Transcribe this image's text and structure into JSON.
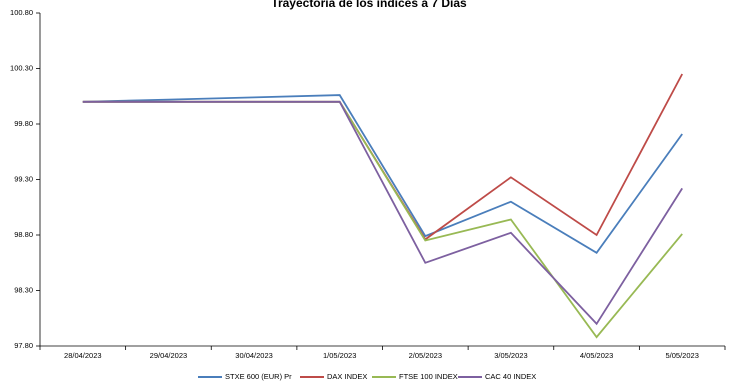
{
  "chart_data": {
    "type": "line",
    "title": "Trayectoria de los índices a 7 Días",
    "xlabel": "",
    "ylabel": "",
    "categories": [
      "28/04/2023",
      "29/04/2023",
      "30/04/2023",
      "1/05/2023",
      "2/05/2023",
      "3/05/2023",
      "4/05/2023",
      "5/05/2023"
    ],
    "ylim": [
      97.8,
      100.8
    ],
    "yticks": [
      97.8,
      98.3,
      98.8,
      99.3,
      99.8,
      100.3,
      100.8
    ],
    "ytick_labels": [
      "97.80",
      "98.30",
      "98.80",
      "99.30",
      "99.80",
      "100.30",
      "100.80"
    ],
    "grid": false,
    "legend_position": "bottom",
    "series": [
      {
        "name": "STXE 600 (EUR) Pr",
        "color": "#4a7ebb",
        "values": [
          100.0,
          100.02,
          100.04,
          100.06,
          98.79,
          99.1,
          98.64,
          99.71
        ]
      },
      {
        "name": "DAX INDEX",
        "color": "#be4b48",
        "values": [
          100.0,
          100.0,
          100.0,
          100.0,
          98.76,
          99.32,
          98.8,
          100.25
        ]
      },
      {
        "name": "FTSE 100 INDEX",
        "color": "#98b954",
        "values": [
          100.0,
          100.0,
          100.0,
          100.0,
          98.75,
          98.94,
          97.88,
          98.81
        ]
      },
      {
        "name": "CAC 40 INDEX",
        "color": "#7d60a0",
        "values": [
          100.0,
          100.0,
          100.0,
          100.0,
          98.55,
          98.82,
          98.0,
          99.22
        ]
      }
    ]
  }
}
